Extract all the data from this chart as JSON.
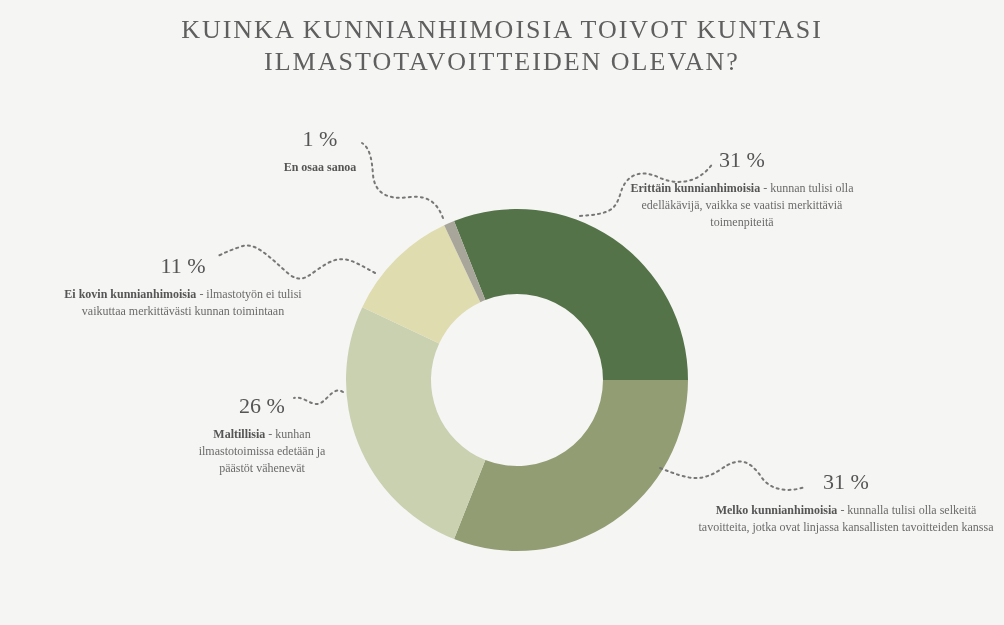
{
  "chart_data": {
    "type": "donut",
    "title": "KUINKA KUNNIANHIMOISIA TOIVOT KUNTASI ILMASTOTAVOITTEIDEN OLEVAN?",
    "categories": [
      "Erittäin kunnianhimoisia",
      "Melko kunnianhimoisia",
      "Maltillisia",
      "Ei kovin kunnianhimoisia",
      "En osaa sanoa"
    ],
    "values": [
      31,
      31,
      26,
      11,
      1
    ],
    "colors": [
      "#557349",
      "#929d73",
      "#c9d1b1",
      "#dfdcb0",
      "#a8a69a"
    ],
    "value_labels": [
      "31 %",
      "31 %",
      "26 %",
      "11 %",
      "1 %"
    ],
    "annotations": [
      "- kunnan tulisi olla edelläkävijä, vaikka se vaatisi merkittäviä toimenpiteitä",
      "- kunnalla tulisi olla selkeitä tavoitteita, jotka ovat linjassa kansallisten tavoitteiden kanssa",
      "- kunhan ilmastotoimissa edetään ja päästöt vähenevät",
      "- ilmastotyön ei tulisi vaikuttaa merkittävästi kunnan toimintaan",
      null
    ]
  }
}
